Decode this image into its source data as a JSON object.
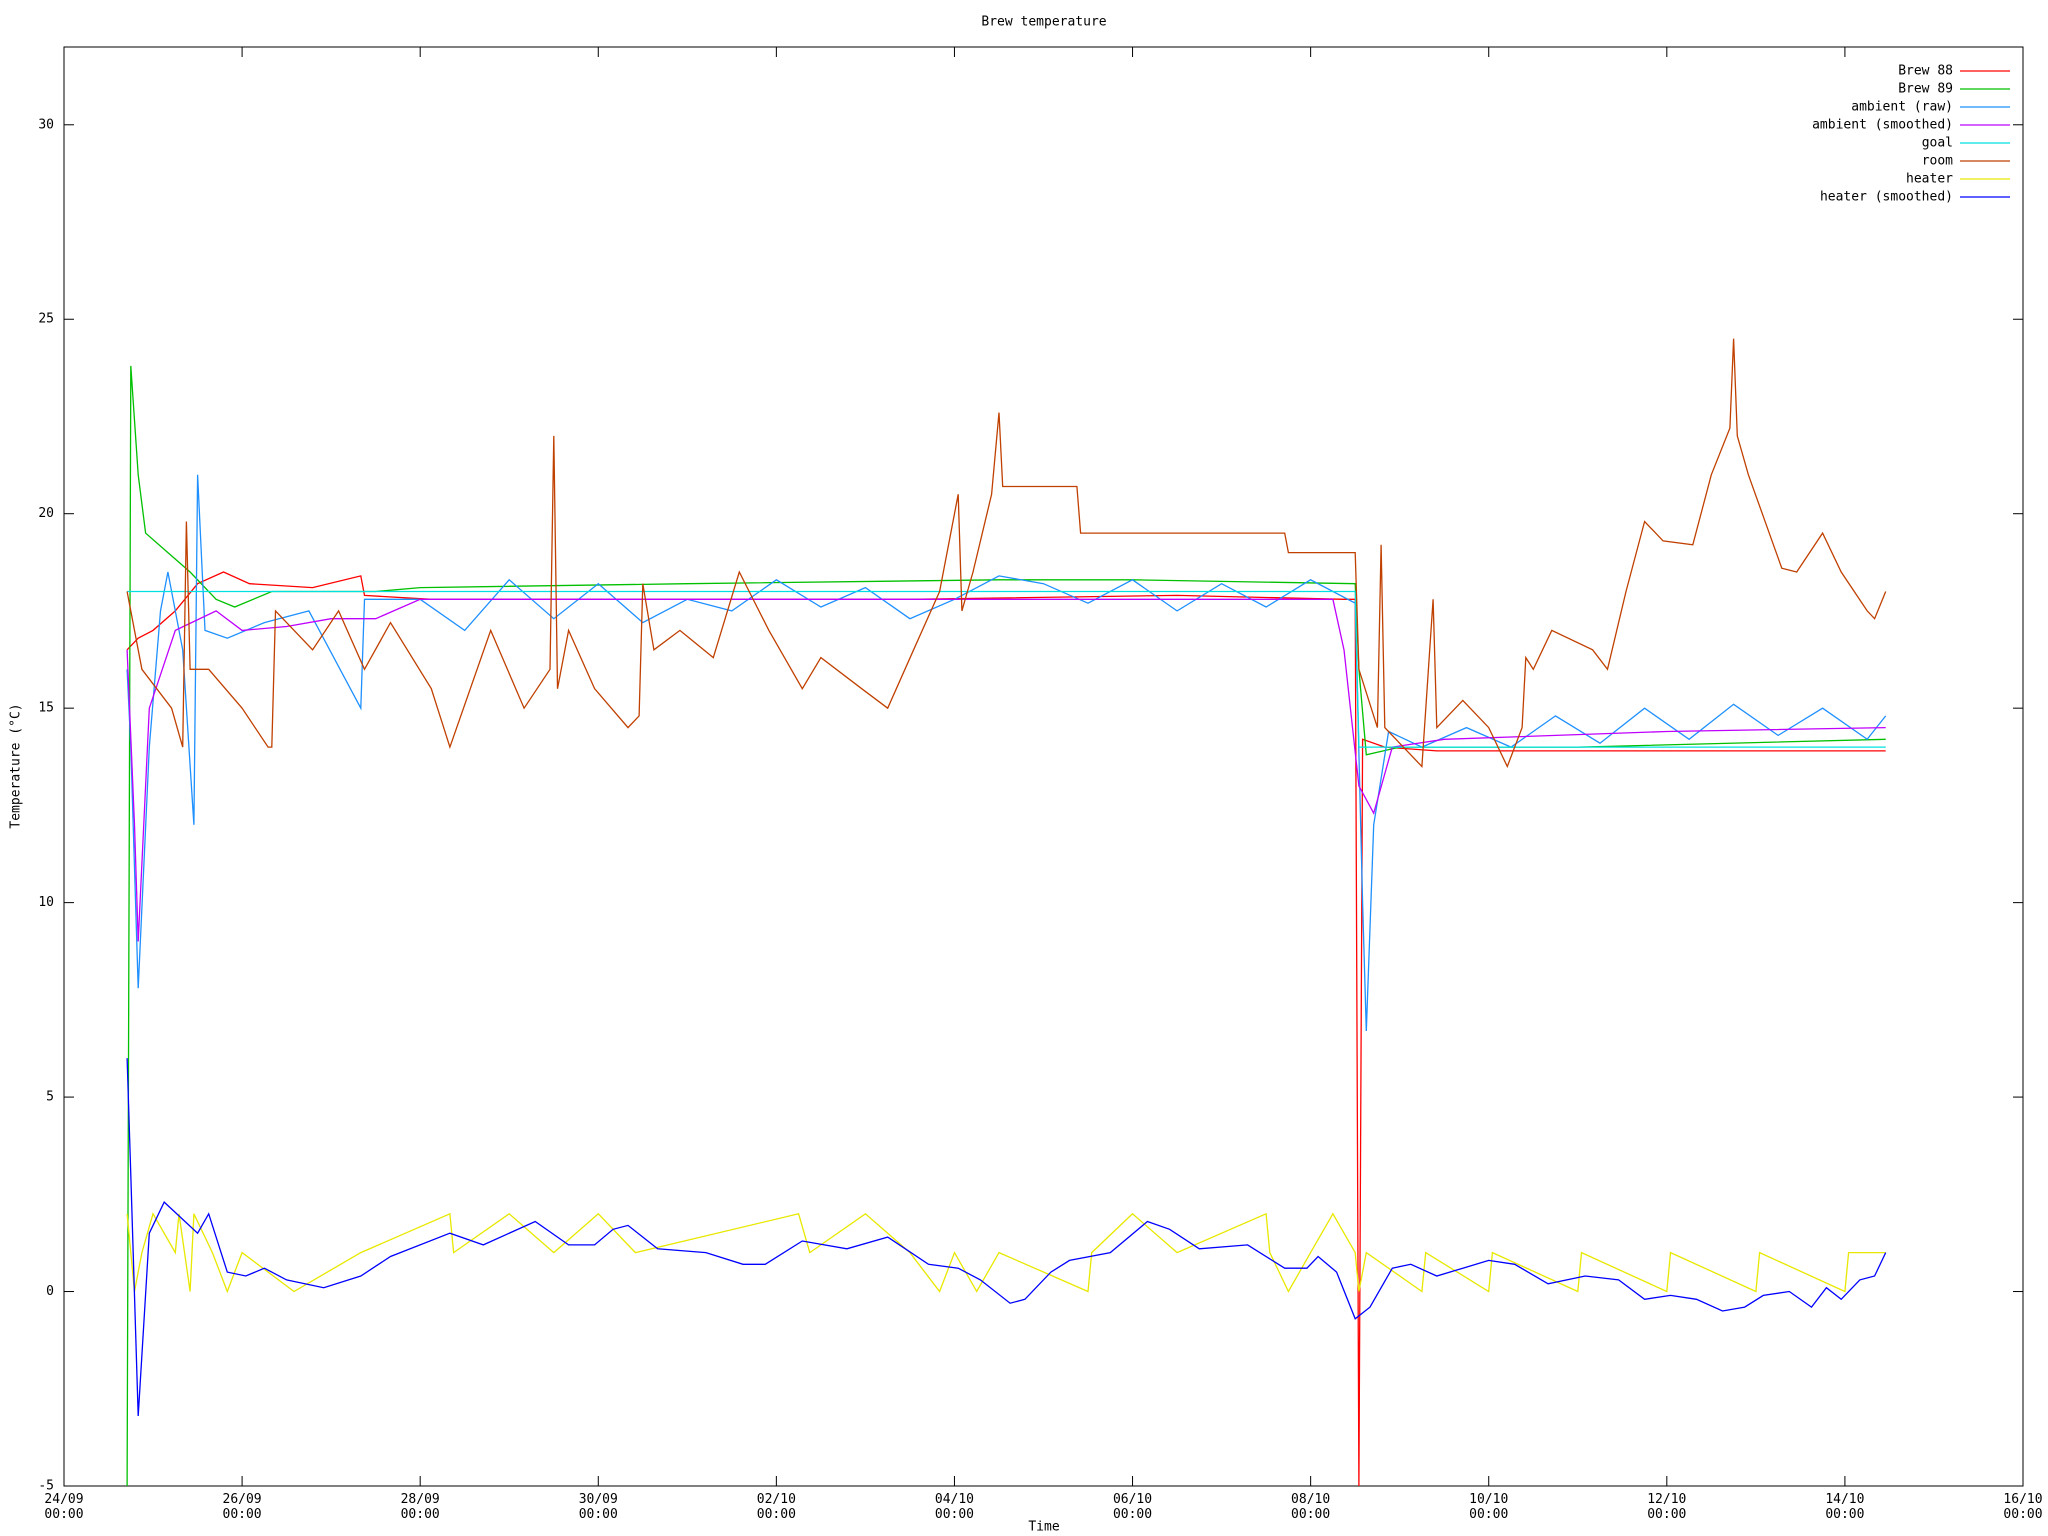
{
  "chart_data": {
    "type": "line",
    "title": "Brew temperature",
    "xlabel": "Time",
    "ylabel": "Temperature (°C)",
    "xlim": [
      "24/09 00:00",
      "16/10 00:00"
    ],
    "xticks": [
      {
        "value": "24/09 00:00",
        "label": "24/09\n00:00"
      },
      {
        "value": "26/09 00:00",
        "label": "26/09\n00:00"
      },
      {
        "value": "28/09 00:00",
        "label": "28/09\n00:00"
      },
      {
        "value": "30/09 00:00",
        "label": "30/09\n00:00"
      },
      {
        "value": "02/10 00:00",
        "label": "02/10\n00:00"
      },
      {
        "value": "04/10 00:00",
        "label": "04/10\n00:00"
      },
      {
        "value": "06/10 00:00",
        "label": "06/10\n00:00"
      },
      {
        "value": "08/10 00:00",
        "label": "08/10\n00:00"
      },
      {
        "value": "10/10 00:00",
        "label": "10/10\n00:00"
      },
      {
        "value": "12/10 00:00",
        "label": "12/10\n00:00"
      },
      {
        "value": "14/10 00:00",
        "label": "14/10\n00:00"
      },
      {
        "value": "16/10 00:00",
        "label": "16/10\n00:00"
      }
    ],
    "ylim": [
      -5,
      32
    ],
    "yticks": [
      -5,
      0,
      5,
      10,
      15,
      20,
      25,
      30
    ],
    "legend": "upper-right",
    "series": [
      {
        "name": "Brew 88",
        "color": "#ff0000",
        "x": [
          "24/09 17:00",
          "24/09 20:00",
          "25/09 00:00",
          "25/09 06:00",
          "25/09 12:00",
          "25/09 19:00",
          "26/09 02:00",
          "26/09 19:00",
          "27/09 08:00",
          "27/09 09:00",
          "28/09 03:00",
          "30/09 15:00",
          "03/10 13:00",
          "06/10 12:00",
          "08/10 09:00",
          "08/10 12:00",
          "08/10 13:00",
          "08/10 14:00",
          "08/10 20:00",
          "09/10 10:00",
          "14/10 11:00"
        ],
        "values": [
          16.5,
          16.8,
          17.0,
          17.5,
          18.2,
          18.5,
          18.2,
          18.1,
          18.4,
          17.9,
          17.8,
          17.8,
          17.8,
          17.9,
          17.8,
          17.8,
          -5,
          14.2,
          14.0,
          13.9,
          13.9
        ]
      },
      {
        "name": "Brew 89",
        "color": "#00c000",
        "x": [
          "24/09 17:00",
          "24/09 18:00",
          "24/09 20:00",
          "24/09 22:00",
          "25/09 04:00",
          "25/09 10:00",
          "25/09 17:00",
          "25/09 22:00",
          "26/09 08:00",
          "27/09 12:00",
          "28/09 00:00",
          "01/10 00:00",
          "04/10 12:00",
          "06/10 00:00",
          "08/10 12:00",
          "08/10 13:00",
          "08/10 15:00",
          "09/10 00:00",
          "11/10 00:00",
          "14/10 11:00"
        ],
        "values": [
          -5,
          23.8,
          21,
          19.5,
          19,
          18.5,
          17.8,
          17.6,
          18.0,
          18.0,
          18.1,
          18.2,
          18.3,
          18.3,
          18.2,
          16,
          13.8,
          14.0,
          14.0,
          14.2
        ]
      },
      {
        "name": "ambient (raw)",
        "color": "#1e90ff",
        "x": [
          "24/09 17:00",
          "24/09 18:00",
          "24/09 20:00",
          "24/09 23:00",
          "25/09 02:00",
          "25/09 04:00",
          "25/09 08:00",
          "25/09 11:00",
          "25/09 12:00",
          "25/09 14:00",
          "25/09 20:00",
          "26/09 06:00",
          "26/09 18:00",
          "27/09 08:00",
          "27/09 09:00",
          "28/09 00:00",
          "28/09 12:00",
          "29/09 00:00",
          "29/09 12:00",
          "30/09 00:00",
          "30/09 12:00",
          "01/10 00:00",
          "01/10 12:00",
          "02/10 00:00",
          "02/10 12:00",
          "03/10 00:00",
          "03/10 12:00",
          "04/10 00:00",
          "04/10 12:00",
          "05/10 00:00",
          "05/10 12:00",
          "06/10 00:00",
          "06/10 12:00",
          "07/10 00:00",
          "07/10 12:00",
          "08/10 00:00",
          "08/10 12:00",
          "08/10 14:00",
          "08/10 15:00",
          "08/10 17:00",
          "08/10 21:00",
          "09/10 06:00",
          "09/10 18:00",
          "10/10 06:00",
          "10/10 18:00",
          "11/10 06:00",
          "11/10 18:00",
          "12/10 06:00",
          "12/10 18:00",
          "13/10 06:00",
          "13/10 18:00",
          "14/10 06:00",
          "14/10 11:00"
        ],
        "values": [
          16,
          14,
          7.8,
          14,
          17.5,
          18.5,
          16.5,
          12,
          21,
          17,
          16.8,
          17.2,
          17.5,
          15,
          17.8,
          17.8,
          17.0,
          18.3,
          17.3,
          18.2,
          17.2,
          17.8,
          17.5,
          18.3,
          17.6,
          18.1,
          17.3,
          17.8,
          18.4,
          18.2,
          17.7,
          18.3,
          17.5,
          18.2,
          17.6,
          18.3,
          17.7,
          10,
          6.7,
          12,
          14.4,
          14,
          14.5,
          14.0,
          14.8,
          14.1,
          15,
          14.2,
          15.1,
          14.3,
          15,
          14.2,
          14.8
        ]
      },
      {
        "name": "ambient (smoothed)",
        "color": "#c000ff",
        "x": [
          "24/09 17:00",
          "24/09 19:00",
          "24/09 20:00",
          "24/09 23:00",
          "25/09 06:00",
          "25/09 17:00",
          "26/09 00:00",
          "26/09 12:00",
          "27/09 00:00",
          "27/09 12:00",
          "28/09 00:00",
          "08/10 06:00",
          "08/10 09:00",
          "08/10 13:00",
          "08/10 17:00",
          "08/10 22:00",
          "09/10 12:00",
          "12/10 00:00",
          "14/10 11:00"
        ],
        "values": [
          16.5,
          12,
          9.0,
          15,
          17.0,
          17.5,
          17.0,
          17.1,
          17.3,
          17.3,
          17.8,
          17.8,
          16.5,
          13,
          12.3,
          14,
          14.2,
          14.4,
          14.5
        ]
      },
      {
        "name": "goal",
        "color": "#00e0e0",
        "x": [
          "24/09 17:00",
          "08/10 12:00",
          "08/10 13:00",
          "14/10 11:00"
        ],
        "values": [
          18,
          18,
          14,
          14
        ]
      },
      {
        "name": "room",
        "color": "#c04000",
        "x": [
          "24/09 17:00",
          "24/09 21:00",
          "25/09 05:00",
          "25/09 08:00",
          "25/09 09:00",
          "25/09 10:00",
          "25/09 15:00",
          "26/09 00:00",
          "26/09 07:00",
          "26/09 08:00",
          "26/09 09:00",
          "26/09 19:00",
          "27/09 02:00",
          "27/09 09:00",
          "27/09 16:00",
          "28/09 03:00",
          "28/09 08:00",
          "28/09 19:00",
          "29/09 04:00",
          "29/09 11:00",
          "29/09 12:00",
          "29/09 13:00",
          "29/09 16:00",
          "29/09 23:00",
          "30/09 08:00",
          "30/09 11:00",
          "30/09 12:00",
          "30/09 15:00",
          "30/09 22:00",
          "01/10 07:00",
          "01/10 14:00",
          "01/10 22:00",
          "02/10 07:00",
          "02/10 12:00",
          "02/10 23:00",
          "03/10 06:00",
          "03/10 13:00",
          "03/10 20:00",
          "04/10 01:00",
          "04/10 02:00",
          "04/10 05:00",
          "04/10 10:00",
          "04/10 12:00",
          "04/10 13:00",
          "05/10 09:00",
          "05/10 10:00",
          "07/10 17:00",
          "07/10 18:00",
          "08/10 12:00",
          "08/10 13:00",
          "08/10 18:00",
          "08/10 19:00",
          "08/10 20:00",
          "09/10 06:00",
          "09/10 09:00",
          "09/10 10:00",
          "09/10 17:00",
          "10/10 00:00",
          "10/10 05:00",
          "10/10 09:00",
          "10/10 10:00",
          "10/10 12:00",
          "10/10 17:00",
          "11/10 04:00",
          "11/10 08:00",
          "11/10 13:00",
          "11/10 18:00",
          "11/10 23:00",
          "12/10 07:00",
          "12/10 12:00",
          "12/10 17:00",
          "12/10 18:00",
          "12/10 19:00",
          "12/10 22:00",
          "13/10 07:00",
          "13/10 11:00",
          "13/10 18:00",
          "13/10 23:00",
          "14/10 06:00",
          "14/10 08:00",
          "14/10 11:00"
        ],
        "values": [
          18,
          16,
          15,
          14,
          19.8,
          16,
          16,
          15,
          14,
          14,
          17.5,
          16.5,
          17.5,
          16,
          17.2,
          15.5,
          14,
          17,
          15,
          16,
          22,
          15.5,
          17,
          15.5,
          14.5,
          14.8,
          18.2,
          16.5,
          17,
          16.3,
          18.5,
          17,
          15.5,
          16.3,
          15.5,
          15,
          16.5,
          18,
          20.5,
          17.5,
          18.5,
          20.5,
          22.6,
          20.7,
          20.7,
          19.5,
          19.5,
          19,
          19,
          16,
          14.5,
          19.2,
          14.5,
          13.5,
          17.8,
          14.5,
          15.2,
          14.5,
          13.5,
          14.5,
          16.3,
          16,
          17,
          16.5,
          16,
          18,
          19.8,
          19.3,
          19.2,
          21,
          22.2,
          24.5,
          22,
          21,
          18.6,
          18.5,
          19.5,
          18.5,
          17.5,
          17.3,
          18
        ]
      },
      {
        "name": "heater",
        "color": "#e8e800",
        "x": [
          "24/09 17:00",
          "24/09 19:00",
          "24/09 21:00",
          "25/09 00:00",
          "25/09 06:00",
          "25/09 07:00",
          "25/09 10:00",
          "25/09 11:00",
          "25/09 16:00",
          "25/09 20:00",
          "26/09 00:00",
          "26/09 14:00",
          "27/09 08:00",
          "28/09 08:00",
          "28/09 09:00",
          "29/09 00:00",
          "29/09 12:00",
          "30/09 00:00",
          "30/09 10:00",
          "02/10 06:00",
          "02/10 09:00",
          "03/10 00:00",
          "03/10 12:00",
          "03/10 20:00",
          "04/10 00:00",
          "04/10 06:00",
          "04/10 12:00",
          "05/10 12:00",
          "05/10 13:00",
          "06/10 00:00",
          "06/10 12:00",
          "07/10 12:00",
          "07/10 13:00",
          "07/10 18:00",
          "08/10 00:00",
          "08/10 06:00",
          "08/10 12:00",
          "08/10 13:00",
          "08/10 15:00",
          "09/10 06:00",
          "09/10 07:00",
          "10/10 00:00",
          "10/10 01:00",
          "11/10 00:00",
          "11/10 01:00",
          "12/10 00:00",
          "12/10 01:00",
          "13/10 00:00",
          "13/10 01:00",
          "14/10 00:00",
          "14/10 01:00",
          "14/10 11:00"
        ],
        "values": [
          2,
          0,
          1,
          2,
          1,
          2,
          0,
          2,
          1,
          0,
          1,
          0,
          1,
          2,
          1,
          2,
          1,
          2,
          1,
          2,
          1,
          2,
          1,
          0,
          1,
          0,
          1,
          0,
          1,
          2,
          1,
          2,
          1,
          0,
          1,
          2,
          1,
          0,
          1,
          0,
          1,
          0,
          1,
          0,
          1,
          0,
          1,
          0,
          1,
          0,
          1,
          1
        ]
      },
      {
        "name": "heater (smoothed)",
        "color": "#0000ff",
        "x": [
          "24/09 17:00",
          "24/09 18:00",
          "24/09 20:00",
          "24/09 23:00",
          "25/09 03:00",
          "25/09 12:00",
          "25/09 15:00",
          "25/09 20:00",
          "26/09 01:00",
          "26/09 06:00",
          "26/09 12:00",
          "26/09 22:00",
          "27/09 08:00",
          "27/09 16:00",
          "28/09 08:00",
          "28/09 17:00",
          "29/09 07:00",
          "29/09 16:00",
          "29/09 23:00",
          "30/09 04:00",
          "30/09 08:00",
          "30/09 16:00",
          "01/10 05:00",
          "01/10 15:00",
          "01/10 21:00",
          "02/10 07:00",
          "02/10 19:00",
          "03/10 06:00",
          "03/10 17:00",
          "04/10 01:00",
          "04/10 07:00",
          "04/10 15:00",
          "04/10 19:00",
          "05/10 02:00",
          "05/10 07:00",
          "05/10 18:00",
          "06/10 04:00",
          "06/10 10:00",
          "06/10 18:00",
          "07/10 07:00",
          "07/10 17:00",
          "07/10 23:00",
          "08/10 02:00",
          "08/10 07:00",
          "08/10 12:00",
          "08/10 16:00",
          "08/10 22:00",
          "09/10 03:00",
          "09/10 10:00",
          "09/10 17:00",
          "10/10 00:00",
          "10/10 07:00",
          "10/10 16:00",
          "11/10 02:00",
          "11/10 11:00",
          "11/10 18:00",
          "12/10 01:00",
          "12/10 08:00",
          "12/10 15:00",
          "12/10 21:00",
          "13/10 02:00",
          "13/10 09:00",
          "13/10 15:00",
          "13/10 19:00",
          "13/10 23:00",
          "14/10 04:00",
          "14/10 08:00",
          "14/10 11:00"
        ],
        "values": [
          6,
          3,
          -3.2,
          1.5,
          2.3,
          1.5,
          2.0,
          0.5,
          0.4,
          0.6,
          0.3,
          0.1,
          0.4,
          0.9,
          1.5,
          1.2,
          1.8,
          1.2,
          1.2,
          1.6,
          1.7,
          1.1,
          1.0,
          0.7,
          0.7,
          1.3,
          1.1,
          1.4,
          0.7,
          0.6,
          0.3,
          -0.3,
          -0.2,
          0.5,
          0.8,
          1.0,
          1.8,
          1.6,
          1.1,
          1.2,
          0.6,
          0.6,
          0.9,
          0.5,
          -0.7,
          -0.4,
          0.6,
          0.7,
          0.4,
          0.6,
          0.8,
          0.7,
          0.2,
          0.4,
          0.3,
          -0.2,
          -0.1,
          -0.2,
          -0.5,
          -0.4,
          -0.1,
          0,
          -0.4,
          0.1,
          -0.2,
          0.3,
          0.4,
          1.0
        ]
      }
    ]
  }
}
